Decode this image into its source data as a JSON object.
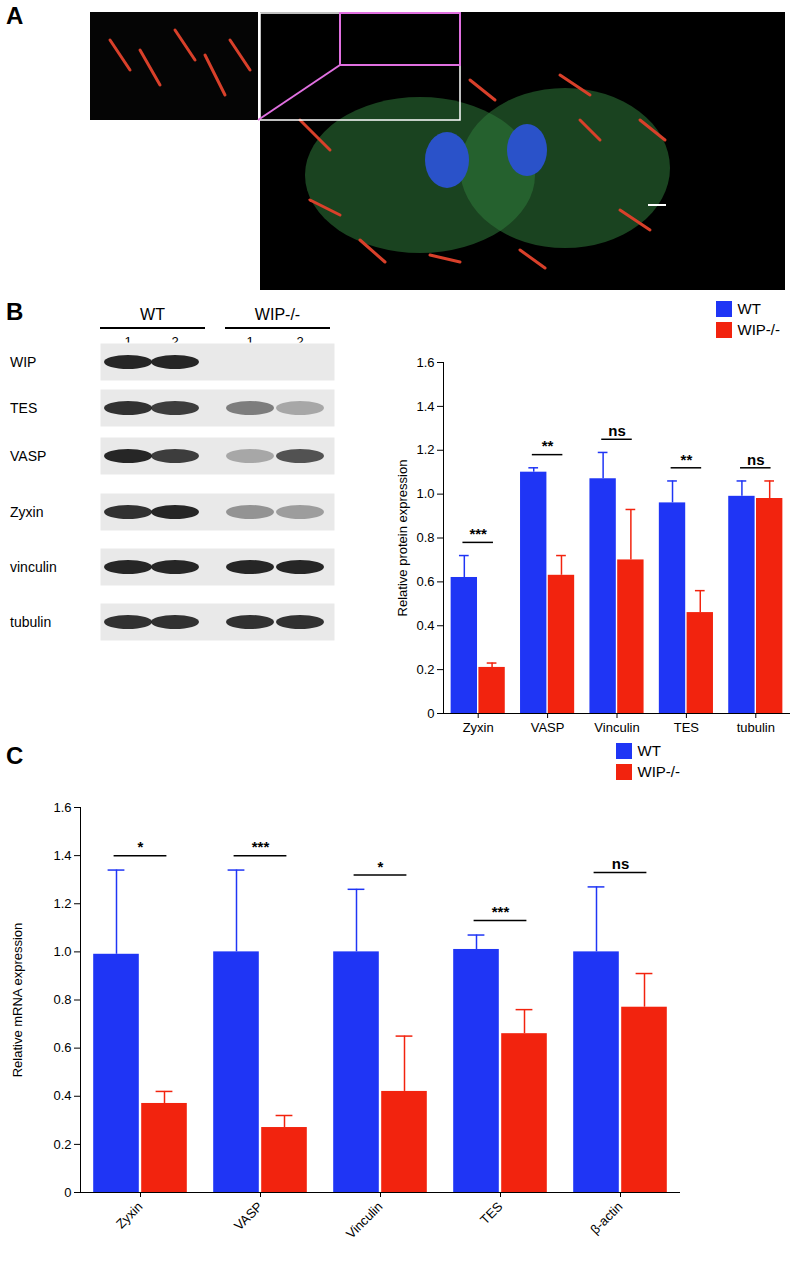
{
  "panel_labels": [
    "A",
    "B",
    "C"
  ],
  "blot": {
    "groups": [
      "WT",
      "WIP-/-"
    ],
    "lanes": [
      "1",
      "2",
      "1",
      "2"
    ],
    "rows": [
      "WIP",
      "TES",
      "VASP",
      "Zyxin",
      "vinculin",
      "tubulin"
    ]
  },
  "chart_data": [
    {
      "type": "bar",
      "ylabel": "Relative protein expression",
      "categories": [
        "Zyxin",
        "VASP",
        "Vinculin",
        "TES",
        "tubulin"
      ],
      "series": [
        {
          "name": "WT",
          "color": "#1f35f5",
          "values": [
            0.62,
            1.1,
            1.07,
            0.96,
            0.99
          ],
          "errors": [
            0.1,
            0.02,
            0.12,
            0.1,
            0.07
          ]
        },
        {
          "name": "WIP-/-",
          "color": "#f2230e",
          "values": [
            0.21,
            0.63,
            0.7,
            0.46,
            0.98
          ],
          "errors": [
            0.02,
            0.09,
            0.23,
            0.1,
            0.08
          ]
        }
      ],
      "significance": [
        "***",
        "**",
        "ns",
        "**",
        "ns"
      ],
      "ylim": [
        0,
        1.6
      ],
      "yticks": [
        0,
        0.2,
        0.4,
        0.6,
        0.8,
        {
          "value": 1,
          "label": "1.0"
        },
        1.2,
        1.4,
        1.6
      ],
      "legend": "top-right"
    },
    {
      "type": "bar",
      "ylabel": "Relative mRNA expression",
      "categories": [
        "Zyxin",
        "VASP",
        "Vinculin",
        "TES",
        "β-actin"
      ],
      "series": [
        {
          "name": "WT",
          "color": "#1f35f5",
          "values": [
            0.99,
            1.0,
            1.0,
            1.01,
            1.0
          ],
          "errors": [
            0.35,
            0.34,
            0.26,
            0.06,
            0.27
          ]
        },
        {
          "name": "WIP-/-",
          "color": "#f2230e",
          "values": [
            0.37,
            0.27,
            0.42,
            0.66,
            0.77
          ],
          "errors": [
            0.05,
            0.05,
            0.23,
            0.1,
            0.14
          ]
        }
      ],
      "significance": [
        "*",
        "***",
        "*",
        "***",
        "ns"
      ],
      "ylim": [
        0,
        1.6
      ],
      "yticks": [
        0,
        0.2,
        0.4,
        0.6,
        0.8,
        {
          "value": 1,
          "label": "1.0"
        },
        1.2,
        1.4,
        1.6
      ],
      "legend": "top-right"
    }
  ]
}
